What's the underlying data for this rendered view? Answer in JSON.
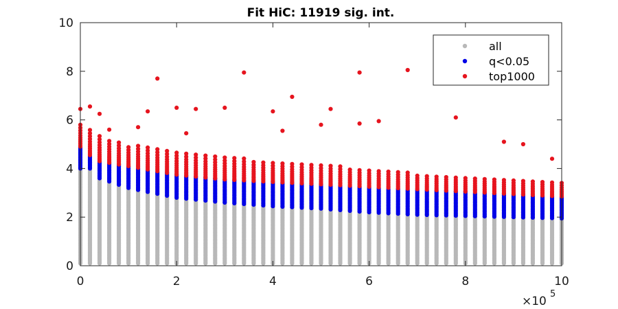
{
  "chart_data": {
    "type": "scatter",
    "title": "Fit HiC: 11919 sig. int.",
    "xlabel": "",
    "ylabel": "",
    "xlim": [
      0,
      1000000
    ],
    "ylim": [
      0,
      10
    ],
    "x_tick_labels": [
      "0",
      "2",
      "4",
      "6",
      "8",
      "10"
    ],
    "y_tick_labels": [
      "0",
      "2",
      "4",
      "6",
      "8",
      "10"
    ],
    "x_exponent_base": "×10",
    "x_exponent_power": "5",
    "x_multiplier": 100000,
    "grid": false,
    "legend_position": "top-right",
    "bin_step": 20000,
    "series": [
      {
        "name": "all",
        "color": "#b8b8b8",
        "description": "gray columns from 0 up to the significance threshold at each distance bin"
      },
      {
        "name": "q<0.05",
        "color": "#0000e6",
        "threshold_curve": {
          "x": [
            0,
            20000,
            40000,
            100000,
            200000,
            300000,
            400000,
            500000,
            600000,
            700000,
            800000,
            900000,
            1000000
          ],
          "y": [
            4.9,
            4.55,
            4.3,
            4.1,
            3.75,
            3.55,
            3.45,
            3.35,
            3.25,
            3.15,
            3.05,
            2.95,
            2.85
          ]
        },
        "lower_curve": {
          "x": [
            0,
            20000,
            40000,
            100000,
            200000,
            300000,
            400000,
            500000,
            600000,
            700000,
            800000,
            900000,
            1000000
          ],
          "y": [
            4.0,
            4.0,
            3.6,
            3.2,
            2.8,
            2.6,
            2.45,
            2.35,
            2.2,
            2.1,
            2.05,
            2.0,
            1.95
          ]
        }
      },
      {
        "name": "top1000",
        "color": "#e6141e",
        "cluster_top": {
          "x": [
            0,
            20000,
            40000,
            100000,
            200000,
            300000,
            400000,
            500000,
            600000,
            700000,
            800000,
            900000,
            1000000
          ],
          "y": [
            5.9,
            5.7,
            5.4,
            5.0,
            4.7,
            4.5,
            4.3,
            4.15,
            4.0,
            3.8,
            3.7,
            3.6,
            3.5
          ]
        },
        "outliers": [
          {
            "x": 0,
            "y": 6.45
          },
          {
            "x": 20000,
            "y": 6.55
          },
          {
            "x": 40000,
            "y": 6.25
          },
          {
            "x": 60000,
            "y": 5.6
          },
          {
            "x": 120000,
            "y": 5.7
          },
          {
            "x": 140000,
            "y": 6.35
          },
          {
            "x": 160000,
            "y": 7.7
          },
          {
            "x": 200000,
            "y": 6.5
          },
          {
            "x": 220000,
            "y": 5.45
          },
          {
            "x": 240000,
            "y": 6.45
          },
          {
            "x": 300000,
            "y": 6.5
          },
          {
            "x": 340000,
            "y": 7.95
          },
          {
            "x": 400000,
            "y": 6.35
          },
          {
            "x": 420000,
            "y": 5.55
          },
          {
            "x": 440000,
            "y": 6.95
          },
          {
            "x": 500000,
            "y": 5.8
          },
          {
            "x": 520000,
            "y": 6.45
          },
          {
            "x": 580000,
            "y": 7.95
          },
          {
            "x": 580000,
            "y": 5.85
          },
          {
            "x": 620000,
            "y": 5.95
          },
          {
            "x": 680000,
            "y": 8.05
          },
          {
            "x": 780000,
            "y": 6.1
          },
          {
            "x": 880000,
            "y": 5.1
          },
          {
            "x": 920000,
            "y": 5.0
          },
          {
            "x": 980000,
            "y": 4.4
          }
        ]
      }
    ]
  }
}
